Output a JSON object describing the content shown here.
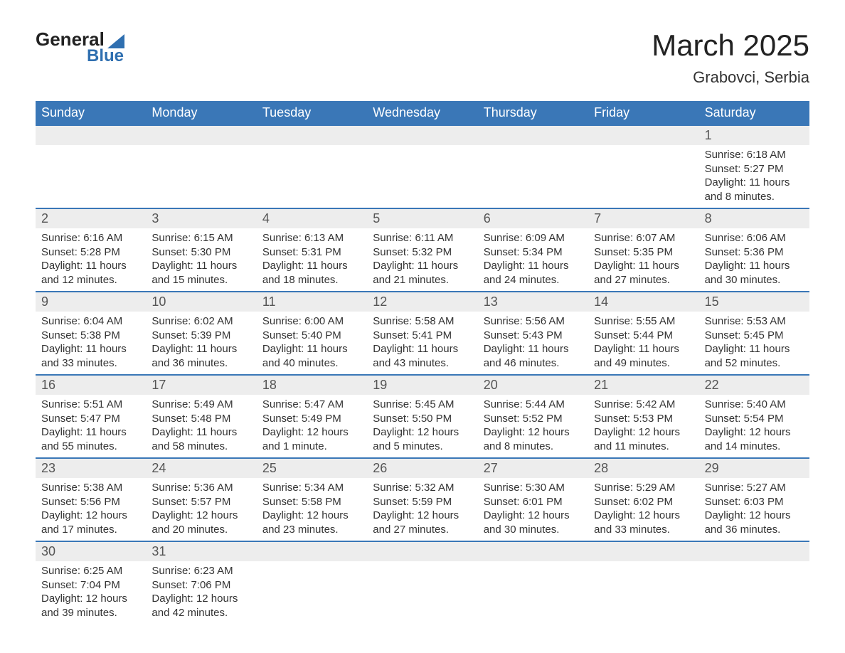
{
  "logo": {
    "word1": "General",
    "word2": "Blue"
  },
  "title": "March 2025",
  "subtitle": "Grabovci, Serbia",
  "table": {
    "header_bg": "#3a77b7",
    "header_fg": "#ffffff",
    "numrow_bg": "#ededed",
    "row_border": "#3a77b7",
    "text_color": "#333333",
    "daynames": [
      "Sunday",
      "Monday",
      "Tuesday",
      "Wednesday",
      "Thursday",
      "Friday",
      "Saturday"
    ]
  },
  "weeks": [
    [
      null,
      null,
      null,
      null,
      null,
      null,
      {
        "n": "1",
        "sunrise": "6:18 AM",
        "sunset": "5:27 PM",
        "daylight": "11 hours and 8 minutes."
      }
    ],
    [
      {
        "n": "2",
        "sunrise": "6:16 AM",
        "sunset": "5:28 PM",
        "daylight": "11 hours and 12 minutes."
      },
      {
        "n": "3",
        "sunrise": "6:15 AM",
        "sunset": "5:30 PM",
        "daylight": "11 hours and 15 minutes."
      },
      {
        "n": "4",
        "sunrise": "6:13 AM",
        "sunset": "5:31 PM",
        "daylight": "11 hours and 18 minutes."
      },
      {
        "n": "5",
        "sunrise": "6:11 AM",
        "sunset": "5:32 PM",
        "daylight": "11 hours and 21 minutes."
      },
      {
        "n": "6",
        "sunrise": "6:09 AM",
        "sunset": "5:34 PM",
        "daylight": "11 hours and 24 minutes."
      },
      {
        "n": "7",
        "sunrise": "6:07 AM",
        "sunset": "5:35 PM",
        "daylight": "11 hours and 27 minutes."
      },
      {
        "n": "8",
        "sunrise": "6:06 AM",
        "sunset": "5:36 PM",
        "daylight": "11 hours and 30 minutes."
      }
    ],
    [
      {
        "n": "9",
        "sunrise": "6:04 AM",
        "sunset": "5:38 PM",
        "daylight": "11 hours and 33 minutes."
      },
      {
        "n": "10",
        "sunrise": "6:02 AM",
        "sunset": "5:39 PM",
        "daylight": "11 hours and 36 minutes."
      },
      {
        "n": "11",
        "sunrise": "6:00 AM",
        "sunset": "5:40 PM",
        "daylight": "11 hours and 40 minutes."
      },
      {
        "n": "12",
        "sunrise": "5:58 AM",
        "sunset": "5:41 PM",
        "daylight": "11 hours and 43 minutes."
      },
      {
        "n": "13",
        "sunrise": "5:56 AM",
        "sunset": "5:43 PM",
        "daylight": "11 hours and 46 minutes."
      },
      {
        "n": "14",
        "sunrise": "5:55 AM",
        "sunset": "5:44 PM",
        "daylight": "11 hours and 49 minutes."
      },
      {
        "n": "15",
        "sunrise": "5:53 AM",
        "sunset": "5:45 PM",
        "daylight": "11 hours and 52 minutes."
      }
    ],
    [
      {
        "n": "16",
        "sunrise": "5:51 AM",
        "sunset": "5:47 PM",
        "daylight": "11 hours and 55 minutes."
      },
      {
        "n": "17",
        "sunrise": "5:49 AM",
        "sunset": "5:48 PM",
        "daylight": "11 hours and 58 minutes."
      },
      {
        "n": "18",
        "sunrise": "5:47 AM",
        "sunset": "5:49 PM",
        "daylight": "12 hours and 1 minute."
      },
      {
        "n": "19",
        "sunrise": "5:45 AM",
        "sunset": "5:50 PM",
        "daylight": "12 hours and 5 minutes."
      },
      {
        "n": "20",
        "sunrise": "5:44 AM",
        "sunset": "5:52 PM",
        "daylight": "12 hours and 8 minutes."
      },
      {
        "n": "21",
        "sunrise": "5:42 AM",
        "sunset": "5:53 PM",
        "daylight": "12 hours and 11 minutes."
      },
      {
        "n": "22",
        "sunrise": "5:40 AM",
        "sunset": "5:54 PM",
        "daylight": "12 hours and 14 minutes."
      }
    ],
    [
      {
        "n": "23",
        "sunrise": "5:38 AM",
        "sunset": "5:56 PM",
        "daylight": "12 hours and 17 minutes."
      },
      {
        "n": "24",
        "sunrise": "5:36 AM",
        "sunset": "5:57 PM",
        "daylight": "12 hours and 20 minutes."
      },
      {
        "n": "25",
        "sunrise": "5:34 AM",
        "sunset": "5:58 PM",
        "daylight": "12 hours and 23 minutes."
      },
      {
        "n": "26",
        "sunrise": "5:32 AM",
        "sunset": "5:59 PM",
        "daylight": "12 hours and 27 minutes."
      },
      {
        "n": "27",
        "sunrise": "5:30 AM",
        "sunset": "6:01 PM",
        "daylight": "12 hours and 30 minutes."
      },
      {
        "n": "28",
        "sunrise": "5:29 AM",
        "sunset": "6:02 PM",
        "daylight": "12 hours and 33 minutes."
      },
      {
        "n": "29",
        "sunrise": "5:27 AM",
        "sunset": "6:03 PM",
        "daylight": "12 hours and 36 minutes."
      }
    ],
    [
      {
        "n": "30",
        "sunrise": "6:25 AM",
        "sunset": "7:04 PM",
        "daylight": "12 hours and 39 minutes."
      },
      {
        "n": "31",
        "sunrise": "6:23 AM",
        "sunset": "7:06 PM",
        "daylight": "12 hours and 42 minutes."
      },
      null,
      null,
      null,
      null,
      null
    ]
  ],
  "labels": {
    "sunrise": "Sunrise: ",
    "sunset": "Sunset: ",
    "daylight": "Daylight: "
  }
}
